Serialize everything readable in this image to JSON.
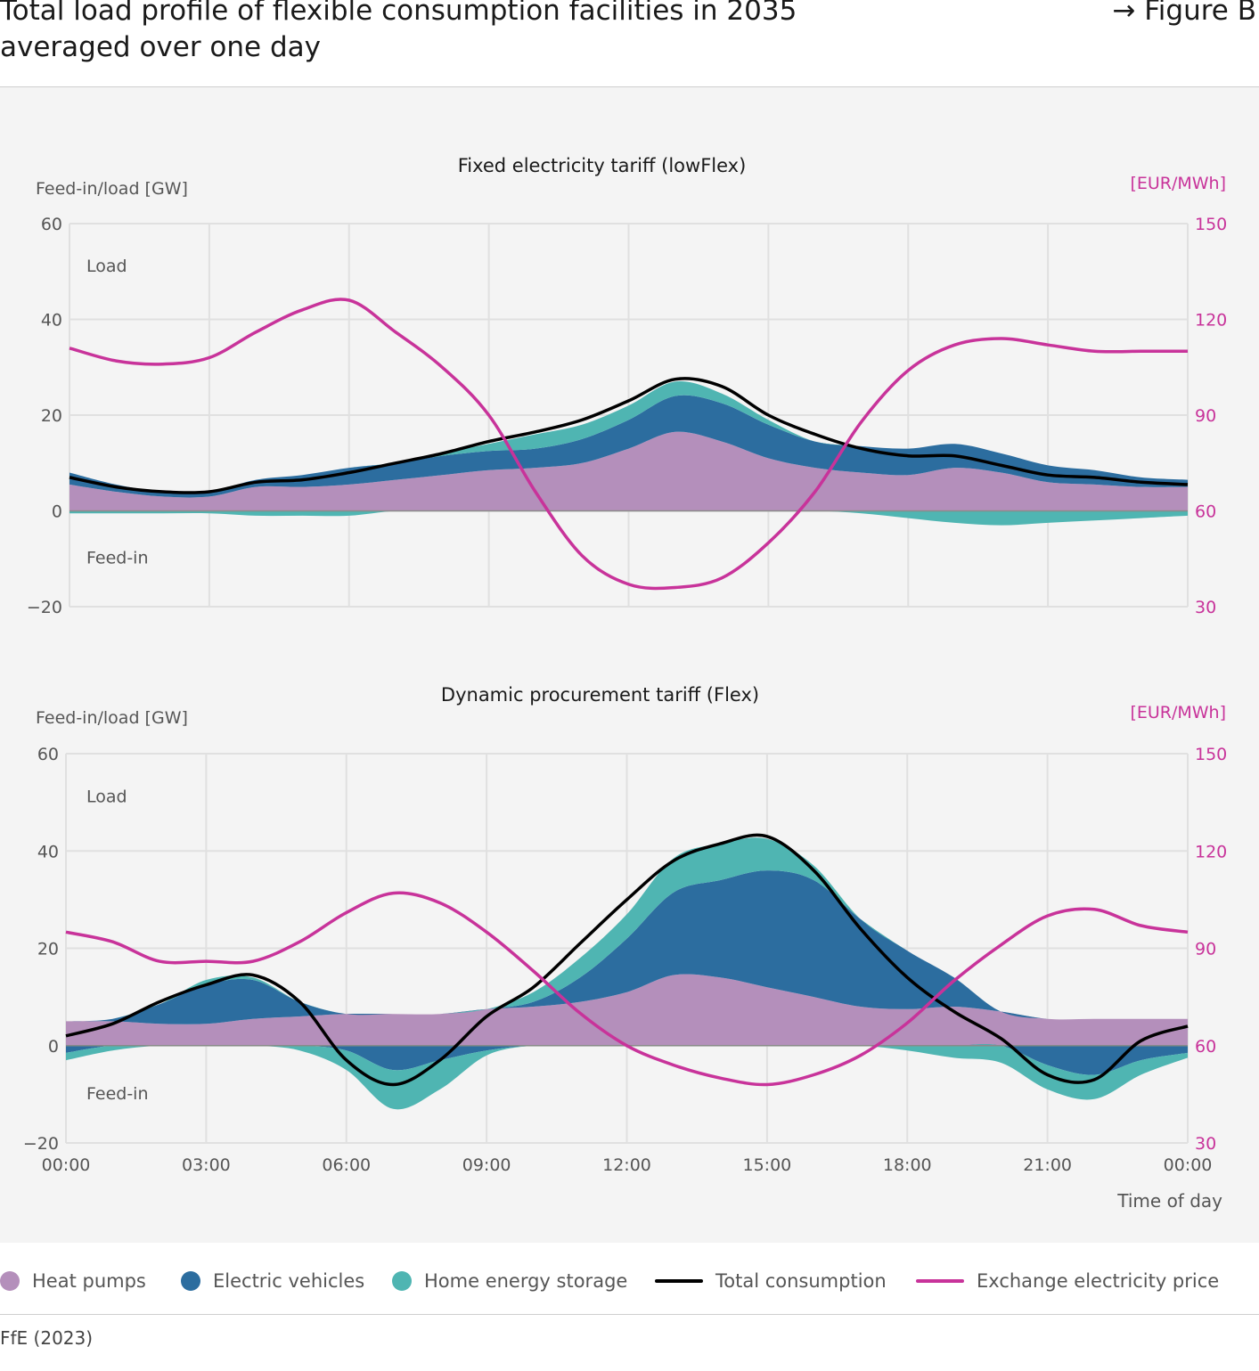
{
  "header": {
    "title_line1": "Total load profile of flexible consumption facilities in 2035",
    "title_line2": "averaged over one day",
    "figure_ref": "→ Figure B"
  },
  "colors": {
    "heat_pumps": "#b48fbb",
    "electric_vehicles": "#2c6d9f",
    "home_energy_storage": "#4fb5b2",
    "total": "#000000",
    "price": "#c8339a",
    "grid": "#e0e0e0",
    "axis_text": "#555555"
  },
  "legend": {
    "heat_pumps": "Heat pumps",
    "electric_vehicles": "Electric vehicles",
    "home_energy_storage": "Home energy storage",
    "total": "Total consumption",
    "price": "Exchange electricity price"
  },
  "source": "FfE (2023)",
  "chart_data": [
    {
      "type": "area",
      "title": "Fixed electricity tariff (lowFlex)",
      "ylabel": "Feed-in/load [GW]",
      "y2label": "[EUR/MWh]",
      "ylim": [
        -20,
        60
      ],
      "y2lim": [
        30,
        150
      ],
      "yticks": [
        "−20",
        "0",
        "20",
        "40",
        "60"
      ],
      "y2ticks": [
        "30",
        "60",
        "90",
        "120",
        "150"
      ],
      "annotations": {
        "load": "Load",
        "feedin": "Feed-in"
      },
      "x": [
        0,
        1,
        2,
        3,
        4,
        5,
        6,
        7,
        8,
        9,
        10,
        11,
        12,
        13,
        14,
        15,
        16,
        17,
        18,
        19,
        20,
        21,
        22,
        23,
        24
      ],
      "series": [
        {
          "name": "Heat pumps",
          "values": [
            5.5,
            4,
            3,
            3,
            5,
            5,
            5.5,
            6.5,
            7.5,
            8.5,
            9,
            10,
            13,
            16.5,
            14.5,
            11,
            9,
            8,
            7.5,
            9,
            8,
            6,
            5.5,
            5,
            5
          ]
        },
        {
          "name": "Electric vehicles",
          "values": [
            2.5,
            1.5,
            1,
            1,
            1.5,
            2.5,
            3.5,
            3.5,
            4,
            4,
            4,
            5,
            6,
            7.5,
            8,
            7,
            5.5,
            5.5,
            5.5,
            5,
            4,
            3.5,
            3,
            2,
            1.5
          ]
        },
        {
          "name": "Home energy storage",
          "values": [
            -0.5,
            -0.5,
            -0.5,
            -0.5,
            -1,
            -1,
            -1,
            0,
            0.5,
            1.5,
            3,
            3,
            3,
            3,
            2,
            1,
            0,
            -0.5,
            -1.5,
            -2.5,
            -3,
            -2.5,
            -2,
            -1.5,
            -1
          ]
        },
        {
          "name": "Total consumption",
          "values": [
            7,
            5,
            4,
            4,
            6,
            6.5,
            8,
            10,
            12,
            14.5,
            16.5,
            19,
            23,
            27.5,
            26,
            20,
            16,
            13,
            11.5,
            11.5,
            9.5,
            7.5,
            7,
            6,
            5.5
          ]
        },
        {
          "name": "Exchange electricity price",
          "axis": "right",
          "values": [
            111,
            107,
            106,
            108,
            116,
            123,
            126,
            116,
            105,
            90,
            66,
            46,
            37,
            36,
            39,
            50,
            66,
            88,
            104,
            112,
            114,
            112,
            110,
            110,
            110
          ]
        }
      ]
    },
    {
      "type": "area",
      "title": "Dynamic procurement tariff (Flex)",
      "ylabel": "Feed-in/load [GW]",
      "y2label": "[EUR/MWh]",
      "xlabel": "Time of day",
      "ylim": [
        -20,
        60
      ],
      "y2lim": [
        30,
        150
      ],
      "yticks": [
        "−20",
        "0",
        "20",
        "40",
        "60"
      ],
      "y2ticks": [
        "30",
        "60",
        "90",
        "120",
        "150"
      ],
      "xticks": [
        "00:00",
        "03:00",
        "06:00",
        "09:00",
        "12:00",
        "15:00",
        "18:00",
        "21:00",
        "00:00"
      ],
      "annotations": {
        "load": "Load",
        "feedin": "Feed-in"
      },
      "x": [
        0,
        1,
        2,
        3,
        4,
        5,
        6,
        7,
        8,
        9,
        10,
        11,
        12,
        13,
        14,
        15,
        16,
        17,
        18,
        19,
        20,
        21,
        22,
        23,
        24
      ],
      "series": [
        {
          "name": "Heat pumps",
          "values": [
            5,
            5,
            4.5,
            4.5,
            5.5,
            6,
            6.5,
            6.5,
            6.5,
            7.5,
            8,
            9,
            11,
            14.5,
            14,
            12,
            10,
            8,
            7.5,
            8,
            7,
            5.5,
            5.5,
            5.5,
            5.5
          ]
        },
        {
          "name": "Electric vehicles",
          "values": [
            -1.5,
            0.5,
            4,
            8,
            8,
            3,
            -1,
            -5,
            -3,
            -1,
            1,
            5,
            11,
            17,
            20,
            24,
            24,
            18,
            12,
            6,
            0,
            -4,
            -6,
            -3,
            -1.5
          ]
        },
        {
          "name": "Home energy storage",
          "values": [
            -1.5,
            -1,
            0,
            1,
            0.5,
            -1,
            -4,
            -8,
            -6,
            -1,
            2,
            4,
            5,
            7,
            7.5,
            6.5,
            3,
            0,
            -1,
            -2.5,
            -3.5,
            -5,
            -5,
            -3,
            -1
          ]
        },
        {
          "name": "Total consumption",
          "values": [
            2,
            4.5,
            9,
            12.5,
            14.5,
            9,
            -3,
            -8,
            -3,
            6,
            12,
            21,
            30,
            38,
            41.5,
            43,
            36,
            24,
            14,
            7,
            1.5,
            -6,
            -7,
            1,
            4
          ]
        },
        {
          "name": "Exchange electricity price",
          "axis": "right",
          "values": [
            95,
            92,
            86,
            86,
            86,
            92,
            101,
            107,
            104,
            95,
            83,
            70,
            60,
            54,
            50,
            48,
            51,
            57,
            67,
            80,
            91,
            100,
            102,
            97,
            95
          ]
        }
      ]
    }
  ]
}
